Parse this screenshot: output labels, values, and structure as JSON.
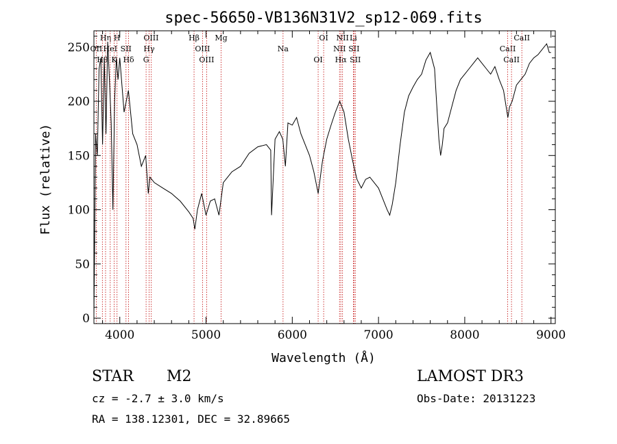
{
  "chart_data": {
    "type": "line",
    "title": "spec-56650-VB136N31V2_sp12-069.fits",
    "xlabel": "Wavelength (Å)",
    "ylabel": "Flux (relative)",
    "xlim": [
      3700,
      9050
    ],
    "ylim": [
      -5,
      265
    ],
    "xticks": [
      4000,
      5000,
      6000,
      7000,
      8000,
      9000
    ],
    "xtick_labels": [
      "4000",
      "5000",
      "6000",
      "7000",
      "8000",
      "9000"
    ],
    "yticks": [
      0,
      50,
      100,
      150,
      200,
      250
    ],
    "ytick_labels": [
      "0",
      "50",
      "100",
      "150",
      "200",
      "250"
    ],
    "series": [
      {
        "name": "flux",
        "x": [
          3700,
          3720,
          3740,
          3760,
          3780,
          3800,
          3820,
          3840,
          3860,
          3880,
          3900,
          3920,
          3940,
          3960,
          3980,
          4000,
          4050,
          4100,
          4150,
          4200,
          4250,
          4300,
          4330,
          4350,
          4400,
          4500,
          4600,
          4700,
          4800,
          4850,
          4870,
          4900,
          4950,
          5000,
          5050,
          5100,
          5150,
          5200,
          5300,
          5400,
          5500,
          5600,
          5700,
          5750,
          5760,
          5800,
          5850,
          5890,
          5920,
          5950,
          6000,
          6050,
          6100,
          6150,
          6200,
          6250,
          6300,
          6350,
          6400,
          6450,
          6500,
          6550,
          6600,
          6650,
          6700,
          6750,
          6800,
          6850,
          6900,
          6950,
          7000,
          7050,
          7100,
          7130,
          7160,
          7200,
          7250,
          7300,
          7350,
          7400,
          7450,
          7500,
          7550,
          7600,
          7650,
          7680,
          7700,
          7720,
          7740,
          7760,
          7800,
          7850,
          7900,
          7950,
          8000,
          8050,
          8100,
          8150,
          8200,
          8250,
          8300,
          8350,
          8400,
          8450,
          8480,
          8500,
          8520,
          8550,
          8600,
          8650,
          8700,
          8750,
          8800,
          8850,
          8900,
          8950,
          8980,
          9000
        ],
        "y": [
          3,
          170,
          150,
          230,
          240,
          160,
          240,
          170,
          255,
          220,
          180,
          100,
          200,
          240,
          220,
          240,
          190,
          210,
          170,
          160,
          140,
          150,
          115,
          130,
          125,
          120,
          115,
          108,
          98,
          92,
          82,
          100,
          115,
          95,
          108,
          110,
          95,
          125,
          135,
          140,
          152,
          158,
          160,
          155,
          95,
          165,
          172,
          165,
          140,
          180,
          178,
          185,
          170,
          160,
          150,
          135,
          115,
          145,
          165,
          178,
          190,
          200,
          190,
          165,
          145,
          128,
          120,
          128,
          130,
          125,
          120,
          110,
          100,
          95,
          105,
          125,
          160,
          190,
          205,
          213,
          220,
          225,
          238,
          245,
          230,
          190,
          165,
          150,
          160,
          175,
          180,
          195,
          210,
          220,
          225,
          230,
          235,
          240,
          235,
          230,
          225,
          232,
          220,
          210,
          195,
          185,
          195,
          200,
          215,
          220,
          225,
          235,
          240,
          243,
          248,
          253,
          245,
          245
        ]
      }
    ],
    "line_markers": [
      {
        "label": "Hβ",
        "x": 4861
      },
      {
        "label": "OIII",
        "x": 4959
      },
      {
        "label": "OIII",
        "x": 5007
      },
      {
        "label": "Mg",
        "x": 5175
      },
      {
        "label": "Na",
        "x": 5893
      },
      {
        "label": "OI",
        "x": 6300
      },
      {
        "label": "OI",
        "x": 6364
      },
      {
        "label": "NII",
        "x": 6548
      },
      {
        "label": "Hα",
        "x": 6563
      },
      {
        "label": "NII",
        "x": 6583
      },
      {
        "label": "SII",
        "x": 6716
      },
      {
        "label": "SII",
        "x": 6731
      },
      {
        "label": "Li",
        "x": 6708
      },
      {
        "label": "CaII",
        "x": 8498
      },
      {
        "label": "CaII",
        "x": 8542
      },
      {
        "label": "CaII",
        "x": 8662
      },
      {
        "label": "OII",
        "x": 3727
      },
      {
        "label": "Hθ",
        "x": 3798
      },
      {
        "label": "Hη",
        "x": 3835
      },
      {
        "label": "HeI",
        "x": 3889
      },
      {
        "label": "K",
        "x": 3934
      },
      {
        "label": "H",
        "x": 3968
      },
      {
        "label": "SII",
        "x": 4072
      },
      {
        "label": "Hδ",
        "x": 4102
      },
      {
        "label": "OIII",
        "x": 4363
      },
      {
        "label": "Hγ",
        "x": 4340
      },
      {
        "label": "G",
        "x": 4305
      }
    ],
    "marker_color": "#c00000"
  },
  "info": {
    "class_label": "STAR",
    "subclass": "M2",
    "survey": "LAMOST DR3",
    "cz": "cz = -2.7 ± 3.0 km/s",
    "obs_date": "Obs-Date: 20131223",
    "coords": "RA = 138.12301, DEC =  32.89665"
  }
}
